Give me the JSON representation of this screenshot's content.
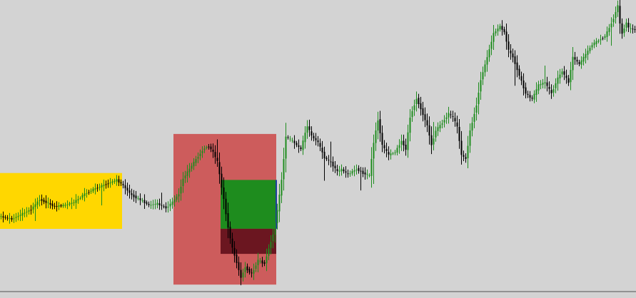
{
  "colors": {
    "background": "#d3d3d3",
    "bull_candle": "#1e8c1e",
    "bear_candle": "#000000",
    "range_box": "#ffd700",
    "supply_zone": "#cd5c5c",
    "entry_zone": "#1e8c1e",
    "stop_zone": "#6b1620",
    "baseline": "#505050"
  },
  "chart_data": {
    "type": "candlestick",
    "title": "",
    "xlabel": "",
    "ylabel": "",
    "x_range": [
      0,
      297
    ],
    "y_range": [
      0,
      418
    ],
    "grid": false,
    "legend": "none",
    "price_path": [
      [
        0,
        108
      ],
      [
        6,
        104
      ],
      [
        10,
        110
      ],
      [
        15,
        118
      ],
      [
        19,
        132
      ],
      [
        22,
        128
      ],
      [
        26,
        122
      ],
      [
        31,
        124
      ],
      [
        35,
        128
      ],
      [
        40,
        140
      ],
      [
        45,
        148
      ],
      [
        50,
        154
      ],
      [
        55,
        160
      ],
      [
        58,
        152
      ],
      [
        62,
        138
      ],
      [
        67,
        130
      ],
      [
        70,
        124
      ],
      [
        74,
        126
      ],
      [
        78,
        120
      ],
      [
        81,
        128
      ],
      [
        84,
        140
      ],
      [
        86,
        162
      ],
      [
        89,
        176
      ],
      [
        93,
        194
      ],
      [
        96,
        206
      ],
      [
        98,
        208
      ],
      [
        100,
        200
      ],
      [
        102,
        186
      ],
      [
        105,
        132
      ],
      [
        107,
        92
      ],
      [
        109,
        62
      ],
      [
        111,
        42
      ],
      [
        113,
        20
      ],
      [
        115,
        35
      ],
      [
        118,
        25
      ],
      [
        121,
        45
      ],
      [
        124,
        40
      ],
      [
        126,
        62
      ],
      [
        128,
        82
      ],
      [
        130,
        116
      ],
      [
        132,
        160
      ],
      [
        134,
        222
      ],
      [
        137,
        216
      ],
      [
        141,
        204
      ],
      [
        144,
        238
      ],
      [
        146,
        223
      ],
      [
        149,
        214
      ],
      [
        152,
        192
      ],
      [
        155,
        185
      ],
      [
        158,
        172
      ],
      [
        160,
        175
      ],
      [
        163,
        168
      ],
      [
        167,
        176
      ],
      [
        170,
        170
      ],
      [
        173,
        166
      ],
      [
        175,
        214
      ],
      [
        177,
        246
      ],
      [
        179,
        210
      ],
      [
        182,
        196
      ],
      [
        185,
        200
      ],
      [
        188,
        216
      ],
      [
        190,
        204
      ],
      [
        192,
        250
      ],
      [
        195,
        277
      ],
      [
        197,
        262
      ],
      [
        200,
        238
      ],
      [
        202,
        210
      ],
      [
        204,
        231
      ],
      [
        207,
        242
      ],
      [
        210,
        255
      ],
      [
        212,
        250
      ],
      [
        214,
        236
      ],
      [
        216,
        196
      ],
      [
        218,
        190
      ],
      [
        220,
        230
      ],
      [
        223,
        268
      ],
      [
        225,
        304
      ],
      [
        228,
        336
      ],
      [
        231,
        370
      ],
      [
        234,
        380
      ],
      [
        236,
        372
      ],
      [
        238,
        346
      ],
      [
        240,
        336
      ],
      [
        243,
        310
      ],
      [
        246,
        284
      ],
      [
        249,
        276
      ],
      [
        252,
        296
      ],
      [
        255,
        300
      ],
      [
        258,
        284
      ],
      [
        261,
        306
      ],
      [
        263,
        316
      ],
      [
        266,
        300
      ],
      [
        268,
        336
      ],
      [
        271,
        326
      ],
      [
        274,
        340
      ],
      [
        277,
        354
      ],
      [
        280,
        360
      ],
      [
        283,
        366
      ],
      [
        285,
        378
      ],
      [
        287,
        392
      ],
      [
        289,
        410
      ],
      [
        290,
        384
      ],
      [
        291,
        370
      ],
      [
        293,
        386
      ],
      [
        294,
        378
      ],
      [
        296,
        376
      ]
    ],
    "zones": [
      {
        "kind": "range-box",
        "x": [
          0,
          57
        ],
        "y": [
          90,
          170
        ]
      },
      {
        "kind": "supply-zone",
        "x": [
          81,
          129
        ],
        "y": [
          10,
          226
        ]
      },
      {
        "kind": "entry-zone",
        "x": [
          103,
          129
        ],
        "y": [
          90,
          160
        ]
      },
      {
        "kind": "stop-zone",
        "x": [
          103,
          129
        ],
        "y": [
          54,
          90
        ]
      }
    ]
  }
}
